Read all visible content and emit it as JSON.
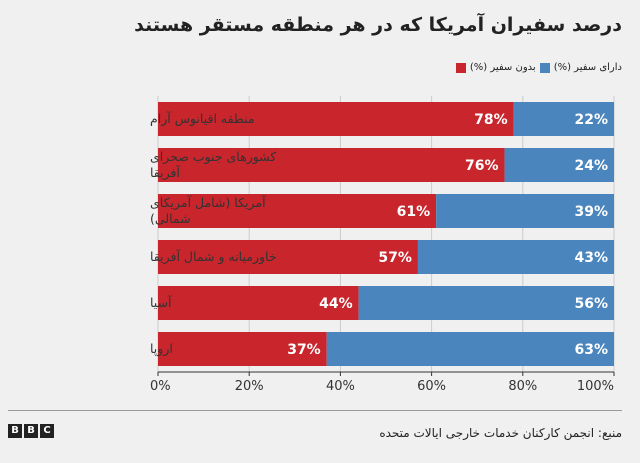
{
  "chart_data": {
    "type": "bar",
    "orientation": "horizontal-stacked",
    "title": "درصد سفیران آمریکا که در هر منطقه مستقر هستند",
    "categories": [
      [
        "منطقه اقیانوس آرام"
      ],
      [
        "کشورهای جنوب صحرای",
        "آفریقا"
      ],
      [
        "آمریکا (شامل آمریکای",
        "شمالی)"
      ],
      [
        "خاورمیانه و شمال آفریقا"
      ],
      [
        "آسیا"
      ],
      [
        "اروپا"
      ]
    ],
    "series": [
      {
        "name": "بدون سفیر (%)",
        "color": "#c8252c",
        "values": [
          78,
          76,
          61,
          57,
          44,
          37
        ]
      },
      {
        "name": "دارای سفیر (%)",
        "color": "#4a86bd",
        "values": [
          22,
          24,
          39,
          43,
          56,
          63
        ]
      }
    ],
    "xlim": [
      0,
      100
    ],
    "xticks": [
      "0%",
      "20%",
      "40%",
      "60%",
      "80%",
      "100%"
    ],
    "grid": true,
    "legend": "top-right"
  },
  "source": "منبع: انجمن کارکنان خدمات خارجی ایالات متحده",
  "logo": [
    "B",
    "B",
    "C"
  ]
}
